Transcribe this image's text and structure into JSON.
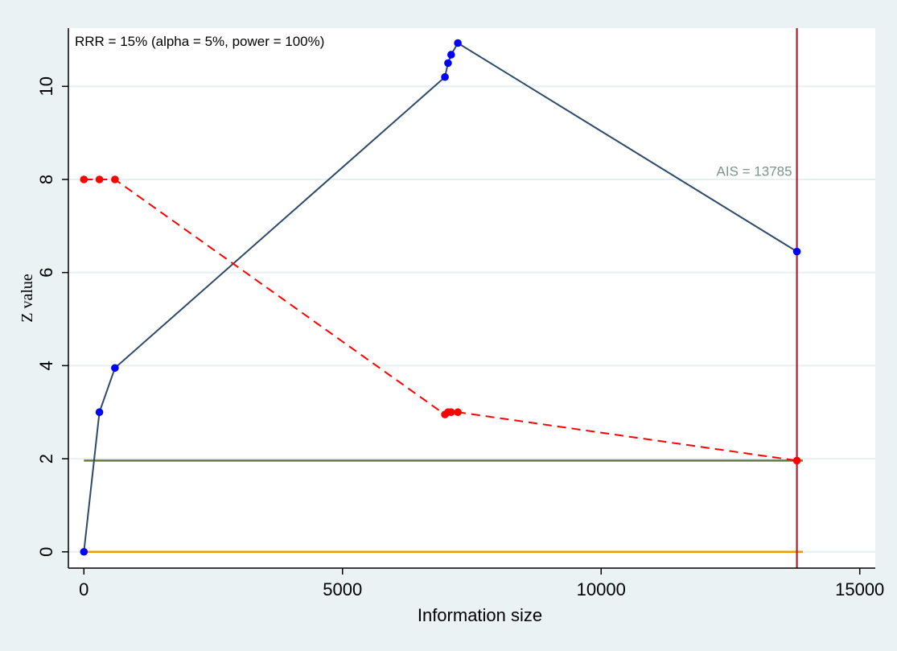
{
  "chart_data": {
    "type": "line",
    "title": "",
    "xlabel": "Information size",
    "ylabel": "Z value",
    "xlim": [
      -300,
      15300
    ],
    "ylim": [
      -0.35,
      11.25
    ],
    "x_ticks": [
      0,
      5000,
      10000,
      15000
    ],
    "y_ticks": [
      0,
      2,
      4,
      6,
      8,
      10
    ],
    "grid": true,
    "annotation": "RRR = 15% (alpha = 5%, power = 100%)",
    "ais_label": "AIS = 13785",
    "ais_value": 13785,
    "series": [
      {
        "role": "cumulative-z",
        "style": "solid",
        "color": "#2d4a6b",
        "marker_color": "#0000ff",
        "x": [
          0,
          300,
          600,
          6980,
          7040,
          7100,
          7230,
          13785
        ],
        "y": [
          0,
          3.0,
          3.95,
          10.2,
          10.5,
          10.68,
          10.93,
          6.45
        ]
      },
      {
        "role": "monitoring-boundary",
        "style": "dashed",
        "color": "#ff0000",
        "marker_color": "#ff0000",
        "x": [
          0,
          300,
          600,
          6980,
          7040,
          7100,
          7230,
          13785
        ],
        "y": [
          8,
          8,
          8,
          2.95,
          3.0,
          3.0,
          3.0,
          1.96
        ]
      }
    ],
    "reference_lines": [
      {
        "role": "conventional-boundary",
        "y": 1.96,
        "color": "#6b7b3a"
      },
      {
        "role": "zero-line",
        "y": 0,
        "color": "#f0960f"
      }
    ],
    "vertical_line": {
      "x": 13785,
      "color": "#b8182e"
    },
    "colors": {
      "outer_background": "#eaf2f3",
      "plot_background": "#ffffff",
      "gridline": "#e6eff1",
      "ais_text": "#7a948c"
    }
  }
}
